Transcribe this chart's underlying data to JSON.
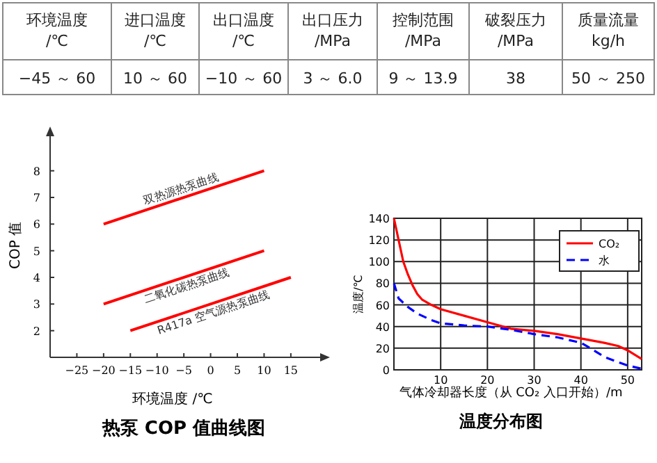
{
  "chart_data": [
    {
      "type": "other",
      "categories": [
        "环境温度\n/℃",
        "进口温度\n/℃",
        "出口温度\n/℃",
        "出口压力\n/MPa",
        "控制范围\n/MPa",
        "破裂压力\n/MPa",
        "质量流量\nkg/h"
      ],
      "annotations": [
        "−45 ～ 60",
        "10 ～ 60",
        "−10 ～ 60",
        "3 ～ 6.0",
        "9 ～ 13.9",
        "38",
        "50 ～ 250"
      ]
    },
    {
      "type": "line",
      "title": "热泵 COP 值曲线图",
      "xlabel": "环境温度 /℃",
      "ylabel": "COP 值",
      "xlim": [
        -30,
        21
      ],
      "ylim": [
        1,
        9.4
      ],
      "xticks": [
        {
          "value": -25,
          "label": "−25"
        },
        {
          "value": -20,
          "label": "−20"
        },
        {
          "value": -15,
          "label": "−15"
        },
        {
          "value": -10,
          "label": "−10"
        },
        {
          "value": -5,
          "label": "−5"
        },
        0,
        5,
        10,
        15
      ],
      "yticks": [
        2,
        3,
        4,
        5,
        6,
        7,
        8
      ],
      "grid": false,
      "series": [
        {
          "name": "双热源热泵曲线",
          "color": "#ff0000",
          "x": [
            -20,
            10
          ],
          "values": [
            6,
            8
          ]
        },
        {
          "name": "二氧化碳热泵曲线",
          "color": "#ff0000",
          "x": [
            -20,
            10
          ],
          "values": [
            3,
            5
          ]
        },
        {
          "name": "R417a 空气源热泵曲线",
          "color": "#ff0000",
          "x": [
            -15,
            15
          ],
          "values": [
            2,
            4
          ]
        }
      ]
    },
    {
      "type": "line",
      "title": "温度分布图",
      "xlabel": "气体冷却器长度（从 CO₂ 入口开始）/m",
      "ylabel": "温度/℃",
      "xlim": [
        0,
        53
      ],
      "ylim": [
        0,
        140
      ],
      "xticks": [
        10,
        20,
        30,
        40,
        50
      ],
      "yticks": [
        0,
        20,
        40,
        60,
        80,
        100,
        120,
        140
      ],
      "grid": true,
      "legend": "top right",
      "series": [
        {
          "name": "CO₂",
          "color": "#ff0000",
          "line_style": "solid",
          "x": [
            0,
            1,
            2,
            3,
            4,
            5,
            6,
            8,
            10,
            15,
            20,
            25,
            30,
            35,
            40,
            45,
            48,
            50,
            53
          ],
          "values": [
            140,
            120,
            100,
            88,
            78,
            70,
            65,
            60,
            56,
            50,
            44,
            38,
            36,
            33,
            29,
            25,
            22,
            18,
            10
          ]
        },
        {
          "name": "水",
          "color": "#0000ff",
          "line_style": "dashed",
          "x": [
            0,
            1,
            3,
            5,
            8,
            10,
            15,
            20,
            25,
            30,
            35,
            40,
            42,
            45,
            48,
            50,
            53
          ],
          "values": [
            80,
            66,
            58,
            52,
            46,
            43,
            41,
            40,
            37,
            33,
            30,
            25,
            20,
            12,
            7,
            4,
            1
          ]
        }
      ]
    }
  ]
}
